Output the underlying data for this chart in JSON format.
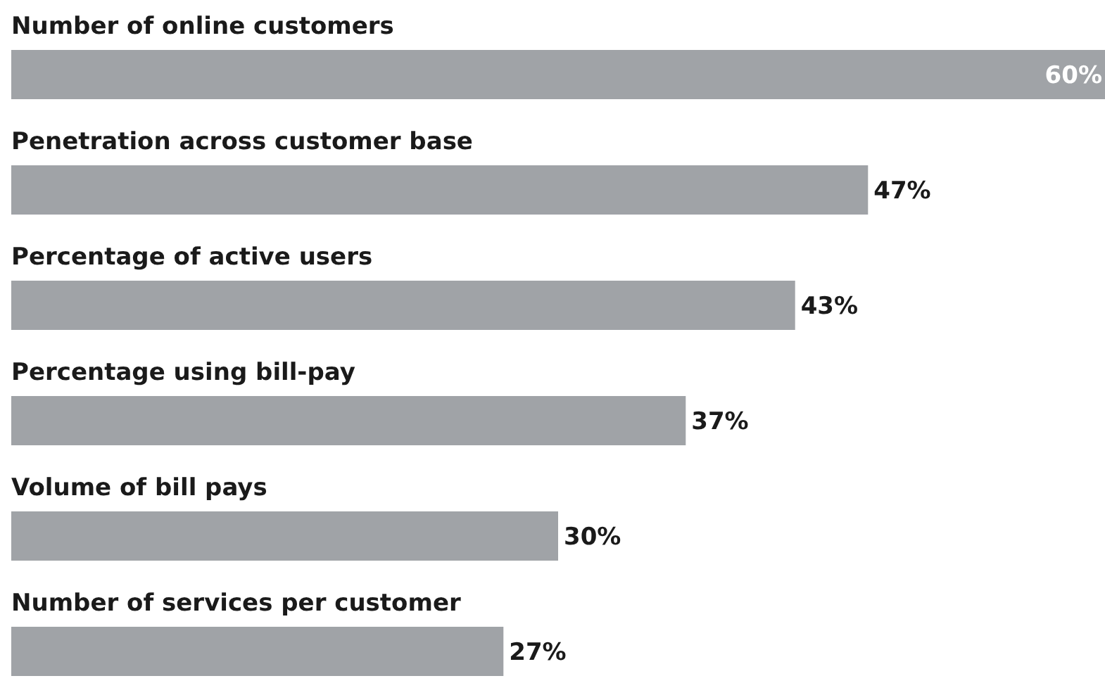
{
  "chart_data": {
    "type": "bar",
    "orientation": "horizontal",
    "categories": [
      "Number of online customers",
      "Penetration across customer base",
      "Percentage of active users",
      "Percentage using bill-pay",
      "Volume of bill pays",
      "Number of services per customer"
    ],
    "values": [
      60,
      47,
      43,
      37,
      30,
      27
    ],
    "value_labels": [
      "60%",
      "47%",
      "43%",
      "37%",
      "30%",
      "27%"
    ],
    "color": "#a0a3a7"
  }
}
